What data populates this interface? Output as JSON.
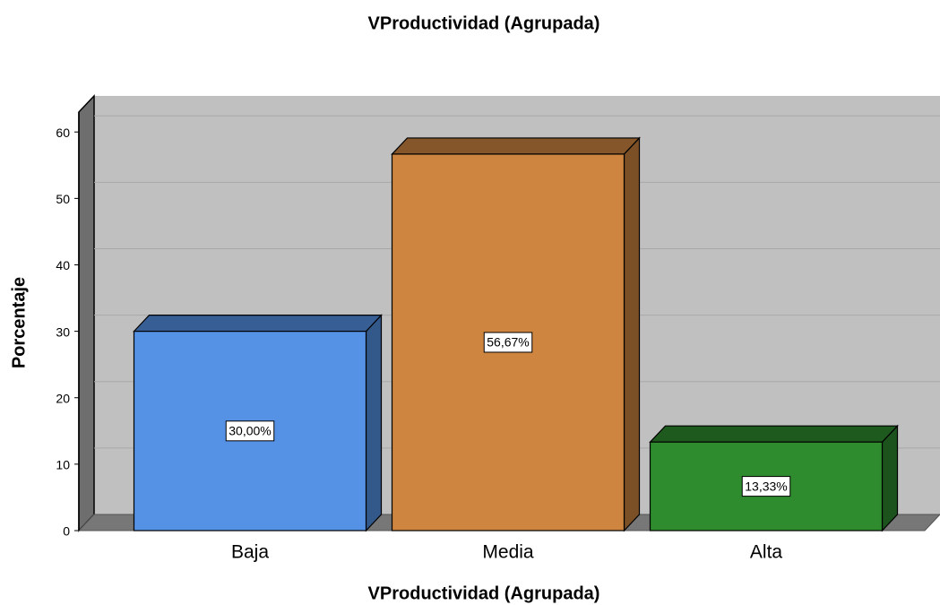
{
  "chart_data": {
    "type": "bar",
    "title": "VProductividad (Agrupada)",
    "x_label": "VProductividad (Agrupada)",
    "y_label": "Porcentaje",
    "categories": [
      "Baja",
      "Media",
      "Alta"
    ],
    "values": [
      30,
      56.67,
      13.33
    ],
    "value_labels": [
      "30,00%",
      "56,67%",
      "13,33%"
    ],
    "colors": [
      "#5592e6",
      "#cd853f",
      "#2e8b2e"
    ],
    "ylim": [
      0,
      63
    ],
    "yticks": [
      0,
      10,
      20,
      30,
      40,
      50,
      60
    ],
    "grid": true
  }
}
